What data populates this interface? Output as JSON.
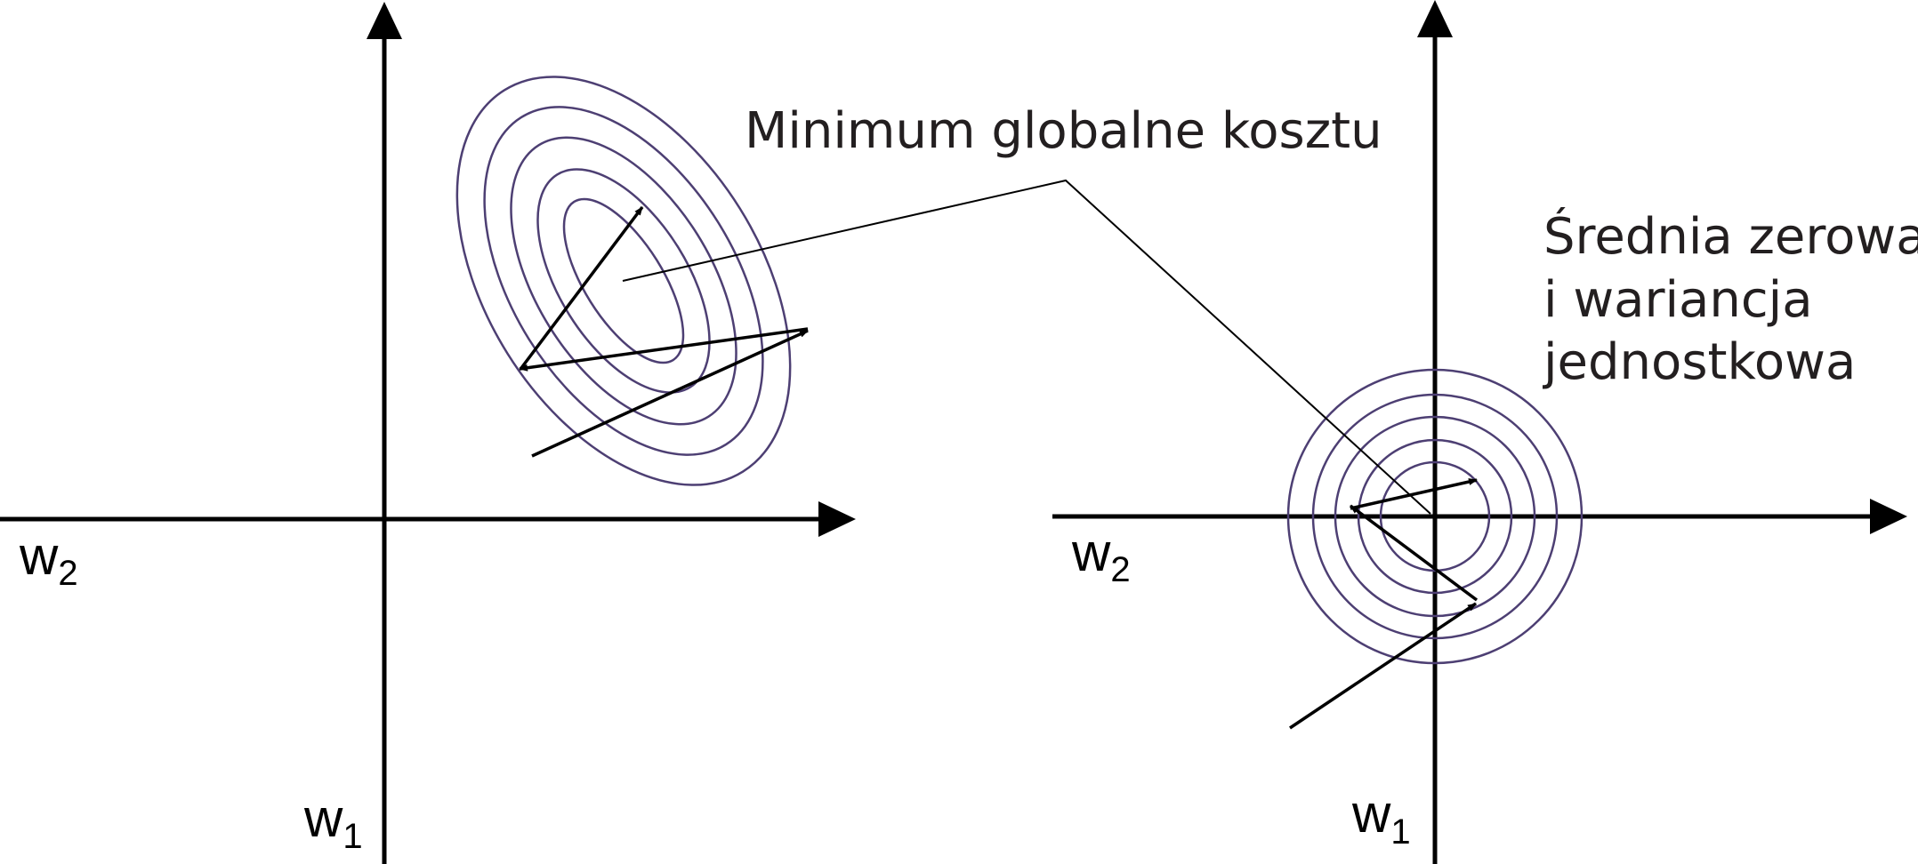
{
  "annotations": {
    "global_minimum": "Minimum globalne kosztu",
    "standardized_line1": "Średnia zerowa",
    "standardized_line2": "i wariancja",
    "standardized_line3": "jednostkowa"
  },
  "left_panel": {
    "x_axis_label": {
      "main": "w",
      "sub": "2"
    },
    "y_axis_label": {
      "main": "w",
      "sub": "1"
    }
  },
  "right_panel": {
    "x_axis_label": {
      "main": "w",
      "sub": "2"
    },
    "y_axis_label": {
      "main": "w",
      "sub": "1"
    }
  },
  "colors": {
    "contour": "#4d3f73",
    "axis": "#000000",
    "text": "#231f20"
  }
}
